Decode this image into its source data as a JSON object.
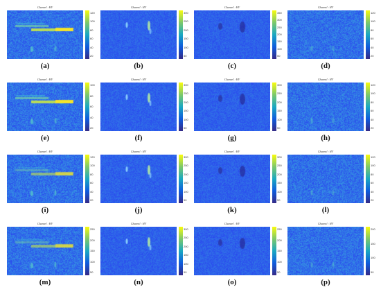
{
  "figure": {
    "colors": {
      "low": "#3a2eaa",
      "mid": "#1f8fe0",
      "high": "#fde725"
    },
    "panels": [
      {
        "label": "(a)",
        "title": "Channel : HV",
        "ticks": [
          "120",
          "100",
          "80",
          "60",
          "40",
          "20"
        ],
        "pattern": "bright_lines"
      },
      {
        "label": "(b)",
        "title": "Channel : HV",
        "ticks": [
          "300",
          "250",
          "200",
          "150",
          "100",
          "50"
        ],
        "pattern": "weak_spots"
      },
      {
        "label": "(c)",
        "title": "Channel : HV",
        "ticks": [
          "350",
          "300",
          "250",
          "200",
          "150",
          "100",
          "50"
        ],
        "pattern": "dark_spots"
      },
      {
        "label": "(d)",
        "title": "Channel : HV",
        "ticks": [
          "120",
          "100",
          "80",
          "60",
          "40",
          "20"
        ],
        "pattern": "faint"
      },
      {
        "label": "(e)",
        "title": "Channel : HV",
        "ticks": [
          "100",
          "80",
          "60",
          "40",
          "20"
        ],
        "pattern": "bright_lines"
      },
      {
        "label": "(f)",
        "title": "Channel : HV",
        "ticks": [
          "300",
          "250",
          "200",
          "150",
          "100",
          "50"
        ],
        "pattern": "weak_spots"
      },
      {
        "label": "(g)",
        "title": "Channel : HV",
        "ticks": [
          "300",
          "250",
          "200",
          "150",
          "100",
          "50"
        ],
        "pattern": "dark_spots"
      },
      {
        "label": "(h)",
        "title": "Channel : HV",
        "ticks": [
          "120",
          "100",
          "80",
          "60",
          "40",
          "20"
        ],
        "pattern": "faint"
      },
      {
        "label": "(i)",
        "title": "Channel : HV",
        "ticks": [
          "120",
          "100",
          "80",
          "60",
          "40",
          "20"
        ],
        "pattern": "bright_lines_dim"
      },
      {
        "label": "(j)",
        "title": "Channel : HV",
        "ticks": [
          "300",
          "250",
          "200",
          "150",
          "100",
          "50"
        ],
        "pattern": "weak_spots"
      },
      {
        "label": "(k)",
        "title": "Channel : HV",
        "ticks": [
          "300",
          "250",
          "200",
          "150",
          "100",
          "50"
        ],
        "pattern": "dark_spots"
      },
      {
        "label": "(l)",
        "title": "Channel : HV",
        "ticks": [
          "120",
          "100",
          "80",
          "60",
          "40",
          "20"
        ],
        "pattern": "faint"
      },
      {
        "label": "(m)",
        "title": "Channel : HV",
        "ticks": [
          "250",
          "200",
          "150",
          "100",
          "50"
        ],
        "pattern": "bright_lines_dim"
      },
      {
        "label": "(n)",
        "title": "Channel : HV",
        "ticks": [
          "300",
          "250",
          "200",
          "150",
          "100",
          "50"
        ],
        "pattern": "weak_spots"
      },
      {
        "label": "(o)",
        "title": "Channel : HV",
        "ticks": [
          "250",
          "200",
          "150",
          "100",
          "50"
        ],
        "pattern": "dark_spots"
      },
      {
        "label": "(p)",
        "title": "Channel : HV",
        "ticks": [
          "200",
          "150",
          "100",
          "50"
        ],
        "pattern": "faint"
      }
    ]
  }
}
